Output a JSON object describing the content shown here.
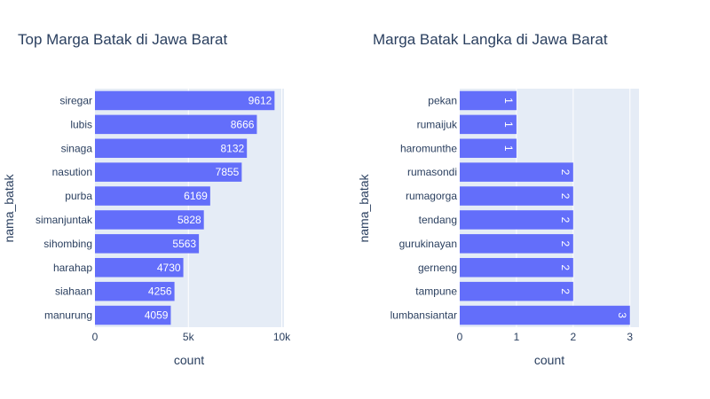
{
  "chart_data": [
    {
      "type": "bar",
      "orientation": "horizontal",
      "title": "Top Marga Batak di Jawa Barat",
      "xlabel": "count",
      "ylabel": "nama_batak",
      "categories": [
        "siregar",
        "lubis",
        "sinaga",
        "nasution",
        "purba",
        "simanjuntak",
        "sihombing",
        "harahap",
        "siahaan",
        "manurung"
      ],
      "values": [
        9612,
        8666,
        8132,
        7855,
        6169,
        5828,
        5563,
        4730,
        4256,
        4059
      ],
      "data_labels": [
        "9612",
        "8666",
        "8132",
        "7855",
        "6169",
        "5828",
        "5563",
        "4730",
        "4256",
        "4059"
      ],
      "xlim": [
        0,
        10118
      ],
      "xticks": [
        0,
        5000,
        10000
      ],
      "xtick_labels": [
        "0",
        "5k",
        "10k"
      ],
      "label_rotation": 0,
      "grid": true,
      "bar_color": "#636efa",
      "plot_bg": "#e5ecf6"
    },
    {
      "type": "bar",
      "orientation": "horizontal",
      "title": "Marga Batak Langka di Jawa Barat",
      "xlabel": "count",
      "ylabel": "nama_batak",
      "categories": [
        "pekan",
        "rumaijuk",
        "haromunthe",
        "rumasondi",
        "rumagorga",
        "tendang",
        "gurukinayan",
        "gerneng",
        "tampune",
        "lumbansiantar"
      ],
      "values": [
        1,
        1,
        1,
        2,
        2,
        2,
        2,
        2,
        2,
        3
      ],
      "data_labels": [
        "1",
        "1",
        "1",
        "2",
        "2",
        "2",
        "2",
        "2",
        "2",
        "3"
      ],
      "xlim": [
        0,
        3.16
      ],
      "xticks": [
        0,
        1,
        2,
        3
      ],
      "xtick_labels": [
        "0",
        "1",
        "2",
        "3"
      ],
      "label_rotation": 90,
      "grid": true,
      "bar_color": "#636efa",
      "plot_bg": "#e5ecf6"
    }
  ]
}
